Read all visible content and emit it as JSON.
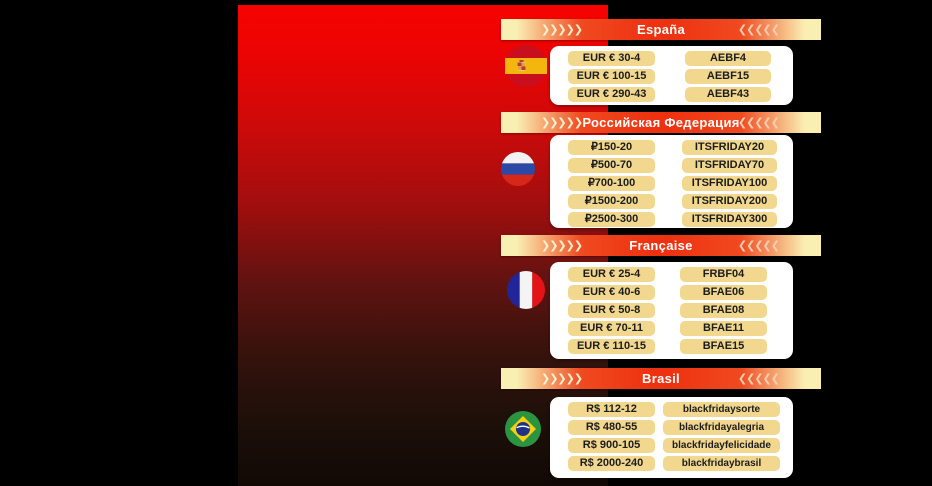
{
  "decor": {
    "chevrons_left": "❯❯❯❯❯",
    "chevrons_right": "❮❮❮❮❮"
  },
  "colors": {
    "background": "#000000",
    "panel_top": "#f60300",
    "panel_bottom": "#110905",
    "band_accent": "#ee3110",
    "band_cream": "#f9efb2",
    "card_bg": "#ffffff",
    "pill_bg": "#f2d88e",
    "pill_text": "#1c1c1c",
    "title_text": "#ffffff"
  },
  "icons": {
    "spain": "spain-flag-icon",
    "russia": "russia-flag-icon",
    "france": "france-flag-icon",
    "brazil": "brazil-flag-icon"
  },
  "sections": [
    {
      "id": "spain",
      "title": "España",
      "rows": [
        {
          "amount": "EUR € 30-4",
          "code": "AEBF4"
        },
        {
          "amount": "EUR € 100-15",
          "code": "AEBF15"
        },
        {
          "amount": "EUR € 290-43",
          "code": "AEBF43"
        }
      ]
    },
    {
      "id": "russia",
      "title": "Российская Федерация",
      "rows": [
        {
          "amount": "₽150-20",
          "code": "ITSFRIDAY20"
        },
        {
          "amount": "₽500-70",
          "code": "ITSFRIDAY70"
        },
        {
          "amount": "₽700-100",
          "code": "ITSFRIDAY100"
        },
        {
          "amount": "₽1500-200",
          "code": "ITSFRIDAY200"
        },
        {
          "amount": "₽2500-300",
          "code": "ITSFRIDAY300"
        }
      ]
    },
    {
      "id": "france",
      "title": "Française",
      "rows": [
        {
          "amount": "EUR € 25-4",
          "code": "FRBF04"
        },
        {
          "amount": "EUR € 40-6",
          "code": "BFAE06"
        },
        {
          "amount": "EUR € 50-8",
          "code": "BFAE08"
        },
        {
          "amount": "EUR € 70-11",
          "code": "BFAE11"
        },
        {
          "amount": "EUR € 110-15",
          "code": "BFAE15"
        }
      ]
    },
    {
      "id": "brazil",
      "title": "Brasil",
      "rows": [
        {
          "amount": "R$ 112-12",
          "code": "blackfridaysorte"
        },
        {
          "amount": "R$ 480-55",
          "code": "blackfridayalegria"
        },
        {
          "amount": "R$ 900-105",
          "code": "blackfridayfelicidade"
        },
        {
          "amount": "R$ 2000-240",
          "code": "blackfridaybrasil"
        }
      ]
    }
  ]
}
